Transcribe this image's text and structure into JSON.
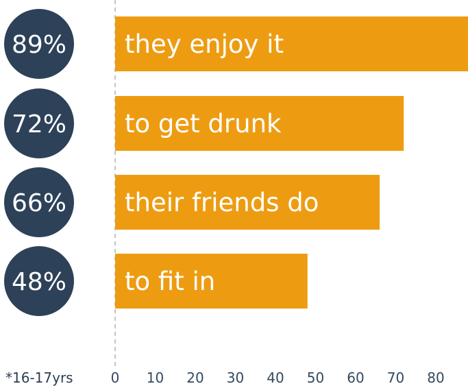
{
  "chart_data": {
    "type": "bar",
    "orientation": "horizontal",
    "categories": [
      "they enjoy it",
      "to get drunk",
      "their friends do",
      "to fit in"
    ],
    "values": [
      89,
      72,
      66,
      48
    ],
    "value_labels": [
      "89%",
      "72%",
      "66%",
      "48%"
    ],
    "x_ticks": [
      "0",
      "10",
      "20",
      "30",
      "40",
      "50",
      "60",
      "70",
      "80"
    ],
    "xlim": [
      0,
      90
    ],
    "grid": false,
    "footnote": "*16-17yrs"
  },
  "colors": {
    "bar": "#ed9c12",
    "badge": "#2d4159",
    "axis_text": "#34495e",
    "zero_line": "#b0b0b0"
  }
}
